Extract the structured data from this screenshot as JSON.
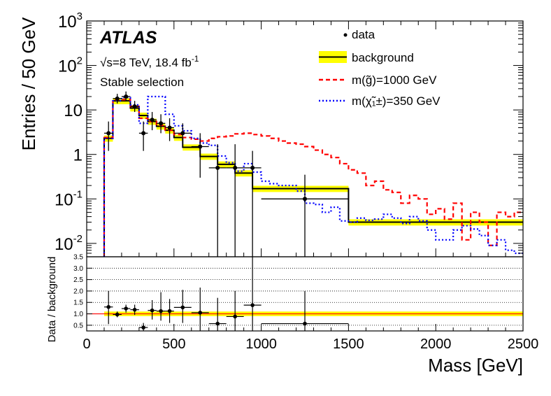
{
  "chart_data": [
    {
      "type": "line",
      "panel": "main",
      "ylabel": "Entries / 50 GeV",
      "yscale": "log",
      "ylim": [
        0.005,
        1000
      ],
      "xlim": [
        0,
        2500
      ],
      "y_ticks": [
        {
          "value": 0.01,
          "base": "10",
          "exp": "-2"
        },
        {
          "value": 0.1,
          "base": "10",
          "exp": "-1"
        },
        {
          "value": 1,
          "base": "1",
          "exp": ""
        },
        {
          "value": 10,
          "base": "10",
          "exp": ""
        },
        {
          "value": 100,
          "base": "10",
          "exp": "2"
        },
        {
          "value": 1000,
          "base": "10",
          "exp": "3"
        }
      ],
      "annotations": {
        "experiment": "ATLAS",
        "sqrt_symbol": "√s",
        "energy_lumi": "=8 TeV, 18.4 fb",
        "lumi_exp": "-1",
        "selection": "Stable selection"
      },
      "legend_position": "top-right",
      "legend": [
        {
          "key": "data",
          "label": "data",
          "style": "points"
        },
        {
          "key": "background",
          "label": "background",
          "style": "band"
        },
        {
          "key": "gluino",
          "label": "m(g̃)=1000 GeV",
          "style": "dashed"
        },
        {
          "key": "chargino",
          "label": "m(χ̃₁±)=350 GeV",
          "style": "dotted"
        }
      ],
      "colors": {
        "background_line": "#000000",
        "background_band": "#ffff00",
        "gluino": "#ff0000",
        "chargino": "#0000ff",
        "data": "#000000"
      },
      "series": [
        {
          "key": "background",
          "edges": [
            100,
            150,
            200,
            250,
            300,
            350,
            400,
            450,
            500,
            550,
            650,
            750,
            850,
            950,
            1000,
            1500,
            2500
          ],
          "values": [
            2.3,
            16,
            16,
            11,
            7.5,
            5.5,
            4.3,
            3.5,
            2.4,
            1.45,
            0.9,
            0.6,
            0.38,
            0.17,
            0.17,
            0.03
          ],
          "band_rel": 0.16
        },
        {
          "key": "gluino",
          "edges": [
            100,
            150,
            200,
            250,
            300,
            350,
            400,
            450,
            500,
            550,
            600,
            650,
            700,
            750,
            800,
            850,
            900,
            950,
            1000,
            1050,
            1100,
            1150,
            1200,
            1250,
            1300,
            1350,
            1400,
            1450,
            1500,
            1550,
            1600,
            1650,
            1700,
            1750,
            1800,
            1850,
            1900,
            1950,
            2000,
            2050,
            2100,
            2150,
            2200,
            2250,
            2300,
            2350,
            2400,
            2450,
            2500
          ],
          "values": [
            2.4,
            17,
            17,
            12,
            6.5,
            5.5,
            4.5,
            3.5,
            2.8,
            2.4,
            2.2,
            2.0,
            2.3,
            2.5,
            2.6,
            2.9,
            3.0,
            2.8,
            2.6,
            2.3,
            2.0,
            1.8,
            1.7,
            1.5,
            1.25,
            1.0,
            0.85,
            0.62,
            0.45,
            0.38,
            0.2,
            0.25,
            0.16,
            0.14,
            0.08,
            0.12,
            0.1,
            0.045,
            0.06,
            0.035,
            0.08,
            0.012,
            0.05,
            0.03,
            0.009,
            0.05,
            0.04,
            0.05
          ]
        },
        {
          "key": "chargino",
          "edges": [
            100,
            150,
            200,
            250,
            300,
            350,
            400,
            450,
            500,
            550,
            600,
            650,
            700,
            750,
            800,
            850,
            900,
            950,
            1000,
            1050,
            1100,
            1150,
            1200,
            1250,
            1300,
            1350,
            1400,
            1450,
            1500,
            1550,
            1600,
            1650,
            1700,
            1750,
            1800,
            1850,
            1900,
            1950,
            2000,
            2050,
            2100,
            2150,
            2200,
            2250,
            2300,
            2350,
            2400,
            2450,
            2500
          ],
          "values": [
            2.3,
            16,
            19,
            13,
            5,
            20,
            20,
            8,
            4.4,
            3.4,
            2.3,
            1.8,
            1.6,
            0.92,
            0.65,
            0.42,
            0.62,
            0.4,
            0.25,
            0.22,
            0.2,
            0.2,
            0.15,
            0.08,
            0.075,
            0.05,
            0.065,
            0.032,
            0.03,
            0.037,
            0.033,
            0.035,
            0.045,
            0.037,
            0.028,
            0.04,
            0.032,
            0.02,
            0.012,
            0.012,
            0.02,
            0.025,
            0.021,
            0.015,
            0.009,
            0.012,
            0.007,
            0.006
          ]
        },
        {
          "key": "data",
          "points": [
            {
              "x": 125,
              "xerr": 25,
              "y": 3,
              "ylo": 1.2,
              "yhi": 5.5
            },
            {
              "x": 175,
              "xerr": 25,
              "y": 18,
              "ylo": 14,
              "yhi": 23
            },
            {
              "x": 225,
              "xerr": 25,
              "y": 20,
              "ylo": 16,
              "yhi": 26
            },
            {
              "x": 275,
              "xerr": 25,
              "y": 12,
              "ylo": 9,
              "yhi": 16
            },
            {
              "x": 325,
              "xerr": 25,
              "y": 3,
              "ylo": 1.2,
              "yhi": 5.5
            },
            {
              "x": 375,
              "xerr": 25,
              "y": 6,
              "ylo": 3.5,
              "yhi": 9
            },
            {
              "x": 425,
              "xerr": 25,
              "y": 5,
              "ylo": 3,
              "yhi": 8
            },
            {
              "x": 475,
              "xerr": 25,
              "y": 4,
              "ylo": 2,
              "yhi": 6.5
            },
            {
              "x": 550,
              "xerr": 50,
              "y": 3,
              "ylo": 1.5,
              "yhi": 5
            },
            {
              "x": 650,
              "xerr": 50,
              "y": 1.5,
              "ylo": 0.3,
              "yhi": 3
            },
            {
              "x": 750,
              "xerr": 50,
              "y": 0.5,
              "ylo": 0.005,
              "yhi": 1.7
            },
            {
              "x": 850,
              "xerr": 50,
              "y": 0.5,
              "ylo": 0.005,
              "yhi": 1.7
            },
            {
              "x": 950,
              "xerr": 50,
              "y": 0.5,
              "ylo": 0.005,
              "yhi": 1.2
            },
            {
              "x": 1250,
              "xerr": 250,
              "y": 0.1,
              "ylo": 0.005,
              "yhi": 0.35
            }
          ]
        }
      ]
    },
    {
      "type": "scatter",
      "panel": "ratio",
      "xlabel": "Mass [GeV]",
      "ylabel": "Data / background",
      "xlim": [
        0,
        2500
      ],
      "ylim": [
        0.25,
        3.5
      ],
      "x_ticks": [
        "0",
        "500",
        "1000",
        "1500",
        "2000",
        "2500"
      ],
      "x_tick_values": [
        0,
        500,
        1000,
        1500,
        2000,
        2500
      ],
      "y_ticks": [
        "0.5",
        "1.0",
        "1.5",
        "2.0",
        "2.5",
        "3.0",
        "3.5"
      ],
      "y_tick_values": [
        0.5,
        1.0,
        1.5,
        2.0,
        2.5,
        3.0,
        3.5
      ],
      "reference_line": 1.0,
      "band": [
        0.9,
        1.1
      ],
      "grid": "horizontal dotted",
      "points": [
        {
          "x": 125,
          "xerr": 25,
          "y": 1.3,
          "ylo": 0.55,
          "yhi": 2.0
        },
        {
          "x": 175,
          "xerr": 25,
          "y": 0.97,
          "ylo": 0.85,
          "yhi": 1.1
        },
        {
          "x": 225,
          "xerr": 25,
          "y": 1.23,
          "ylo": 1.05,
          "yhi": 1.4
        },
        {
          "x": 275,
          "xerr": 25,
          "y": 1.18,
          "ylo": 0.95,
          "yhi": 1.4
        },
        {
          "x": 325,
          "xerr": 25,
          "y": 0.4,
          "ylo": 0.25,
          "yhi": 0.6
        },
        {
          "x": 375,
          "xerr": 25,
          "y": 1.15,
          "ylo": 0.75,
          "yhi": 1.6
        },
        {
          "x": 425,
          "xerr": 25,
          "y": 1.12,
          "ylo": 0.7,
          "yhi": 1.95
        },
        {
          "x": 475,
          "xerr": 25,
          "y": 1.12,
          "ylo": 0.6,
          "yhi": 1.65
        },
        {
          "x": 550,
          "xerr": 50,
          "y": 1.28,
          "ylo": 0.6,
          "yhi": 2.05
        },
        {
          "x": 650,
          "xerr": 50,
          "y": 1.05,
          "ylo": 0.25,
          "yhi": 2.15
        },
        {
          "x": 750,
          "xerr": 50,
          "y": 0.57,
          "ylo": 0.25,
          "yhi": 1.7
        },
        {
          "x": 850,
          "xerr": 50,
          "y": 0.88,
          "ylo": 0.25,
          "yhi": 2.0
        },
        {
          "x": 950,
          "xerr": 50,
          "y": 1.38,
          "ylo": 0.25,
          "yhi": 3.5
        },
        {
          "x": 1250,
          "xerr": 250,
          "y": 0.57,
          "ylo": 0.25,
          "yhi": 2.0
        }
      ]
    }
  ]
}
